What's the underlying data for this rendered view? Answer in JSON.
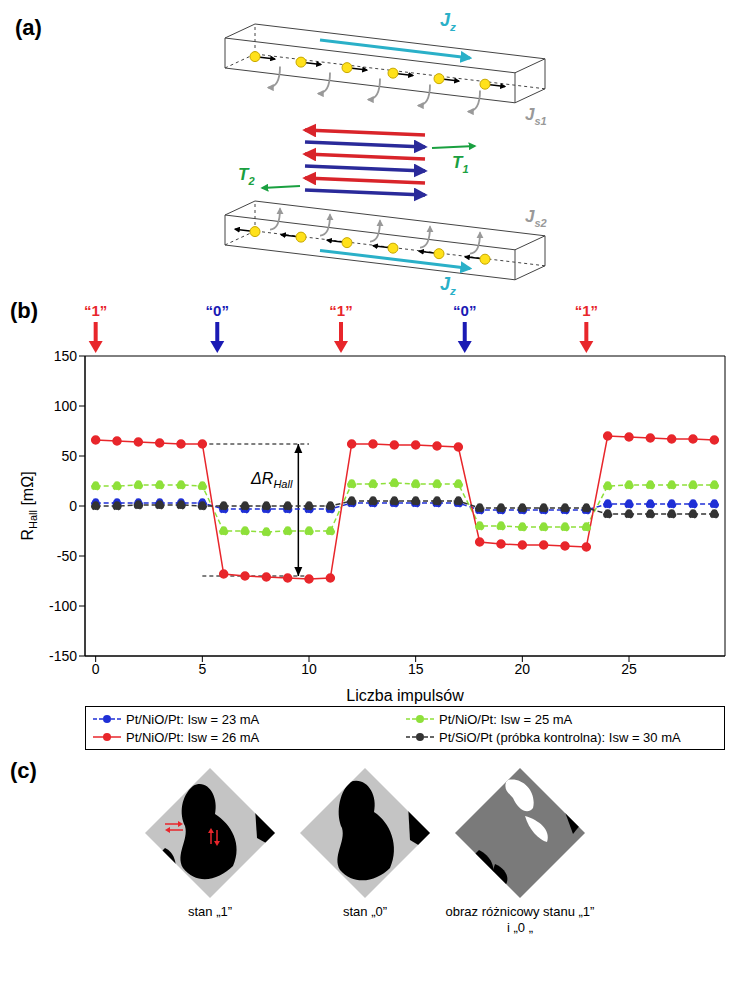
{
  "panel_a": {
    "label": "(a)",
    "top_current": {
      "main": "J",
      "sub": "z"
    },
    "bottom_current": {
      "main": "J",
      "sub": "z"
    },
    "spin_current_1": {
      "main": "J",
      "sub": "s1"
    },
    "spin_current_2": {
      "main": "J",
      "sub": "s2"
    },
    "torque_1": {
      "main": "T",
      "sub": "1"
    },
    "torque_2": {
      "main": "T",
      "sub": "2"
    }
  },
  "panel_b_label": "(b)",
  "chart_data": {
    "type": "line",
    "xlabel": "Liczba impulsów",
    "ylabel": {
      "main": "R",
      "sub": "Hall",
      "after": " [mΩ]"
    },
    "x": [
      0,
      1,
      2,
      3,
      4,
      5,
      6,
      7,
      8,
      9,
      10,
      11,
      12,
      13,
      14,
      15,
      16,
      17,
      18,
      19,
      20,
      21,
      22,
      23,
      24,
      25,
      26,
      27,
      28,
      29
    ],
    "xlim": [
      -0.5,
      29.5
    ],
    "xticks": [
      0,
      5,
      10,
      15,
      20,
      25
    ],
    "ylim": [
      -150,
      150
    ],
    "yticks": [
      -150,
      -100,
      -50,
      0,
      50,
      100,
      150
    ],
    "grid": false,
    "legend": "bottom",
    "series": [
      {
        "name": "Pt/NiO/Pt: Isw = 23 mA",
        "color": "#1f2fd6",
        "marker": "circle",
        "line_style": "dashed",
        "values": [
          3,
          3,
          3,
          3,
          3,
          3,
          -3,
          -3,
          -3,
          -3,
          -3,
          -3,
          3,
          3,
          3,
          3,
          3,
          3,
          -4,
          -4,
          -4,
          -4,
          -4,
          -4,
          2,
          2,
          2,
          2,
          2,
          2
        ]
      },
      {
        "name": "Pt/NiO/Pt: Isw = 25 mA",
        "color": "#8ee03a",
        "marker": "circle",
        "line_style": "dashed",
        "values": [
          20,
          20,
          21,
          21,
          21,
          20,
          -25,
          -25,
          -26,
          -25,
          -25,
          -25,
          22,
          22,
          23,
          22,
          22,
          22,
          -20,
          -20,
          -21,
          -21,
          -21,
          -21,
          20,
          21,
          21,
          21,
          21,
          21
        ]
      },
      {
        "name": "Pt/NiO/Pt: Isw = 26 mA",
        "color": "#e8262b",
        "marker": "circle",
        "line_style": "solid",
        "values": [
          66,
          65,
          64,
          63,
          62,
          62,
          -68,
          -70,
          -71,
          -72,
          -73,
          -72,
          62,
          62,
          61,
          61,
          60,
          59,
          -36,
          -38,
          -39,
          -39,
          -40,
          -41,
          70,
          69,
          68,
          67,
          67,
          66
        ]
      },
      {
        "name": "Pt/SiO/Pt (próbka kontrolna): Isw = 30 mA",
        "color": "#333333",
        "marker": "circle",
        "line_style": "dashed",
        "values": [
          0,
          0,
          1,
          1,
          1,
          0,
          0,
          0,
          0,
          0,
          0,
          0,
          5,
          5,
          5,
          5,
          5,
          5,
          -2,
          -2,
          -2,
          -2,
          -2,
          -2,
          -8,
          -8,
          -8,
          -8,
          -8,
          -8
        ]
      }
    ],
    "pulses": [
      {
        "x": 0,
        "label": "“1”",
        "color": "#e8262b"
      },
      {
        "x": 5.7,
        "label": "“0”",
        "color": "#1a1ab4"
      },
      {
        "x": 11.5,
        "label": "“1”",
        "color": "#e8262b"
      },
      {
        "x": 17.3,
        "label": "“0”",
        "color": "#1a1ab4"
      },
      {
        "x": 23,
        "label": "“1”",
        "color": "#e8262b"
      }
    ],
    "delta": {
      "text": {
        "main": "ΔR",
        "sub": "Hall"
      },
      "x": 9.5,
      "y_top": 62,
      "y_bottom": -70,
      "x_from": 5,
      "x_to": 10
    }
  },
  "panel_c": {
    "label": "(c)",
    "captions": [
      "stan „1”",
      "stan „0”",
      "obraz różnicowy stanu „1” i „0 „"
    ]
  }
}
